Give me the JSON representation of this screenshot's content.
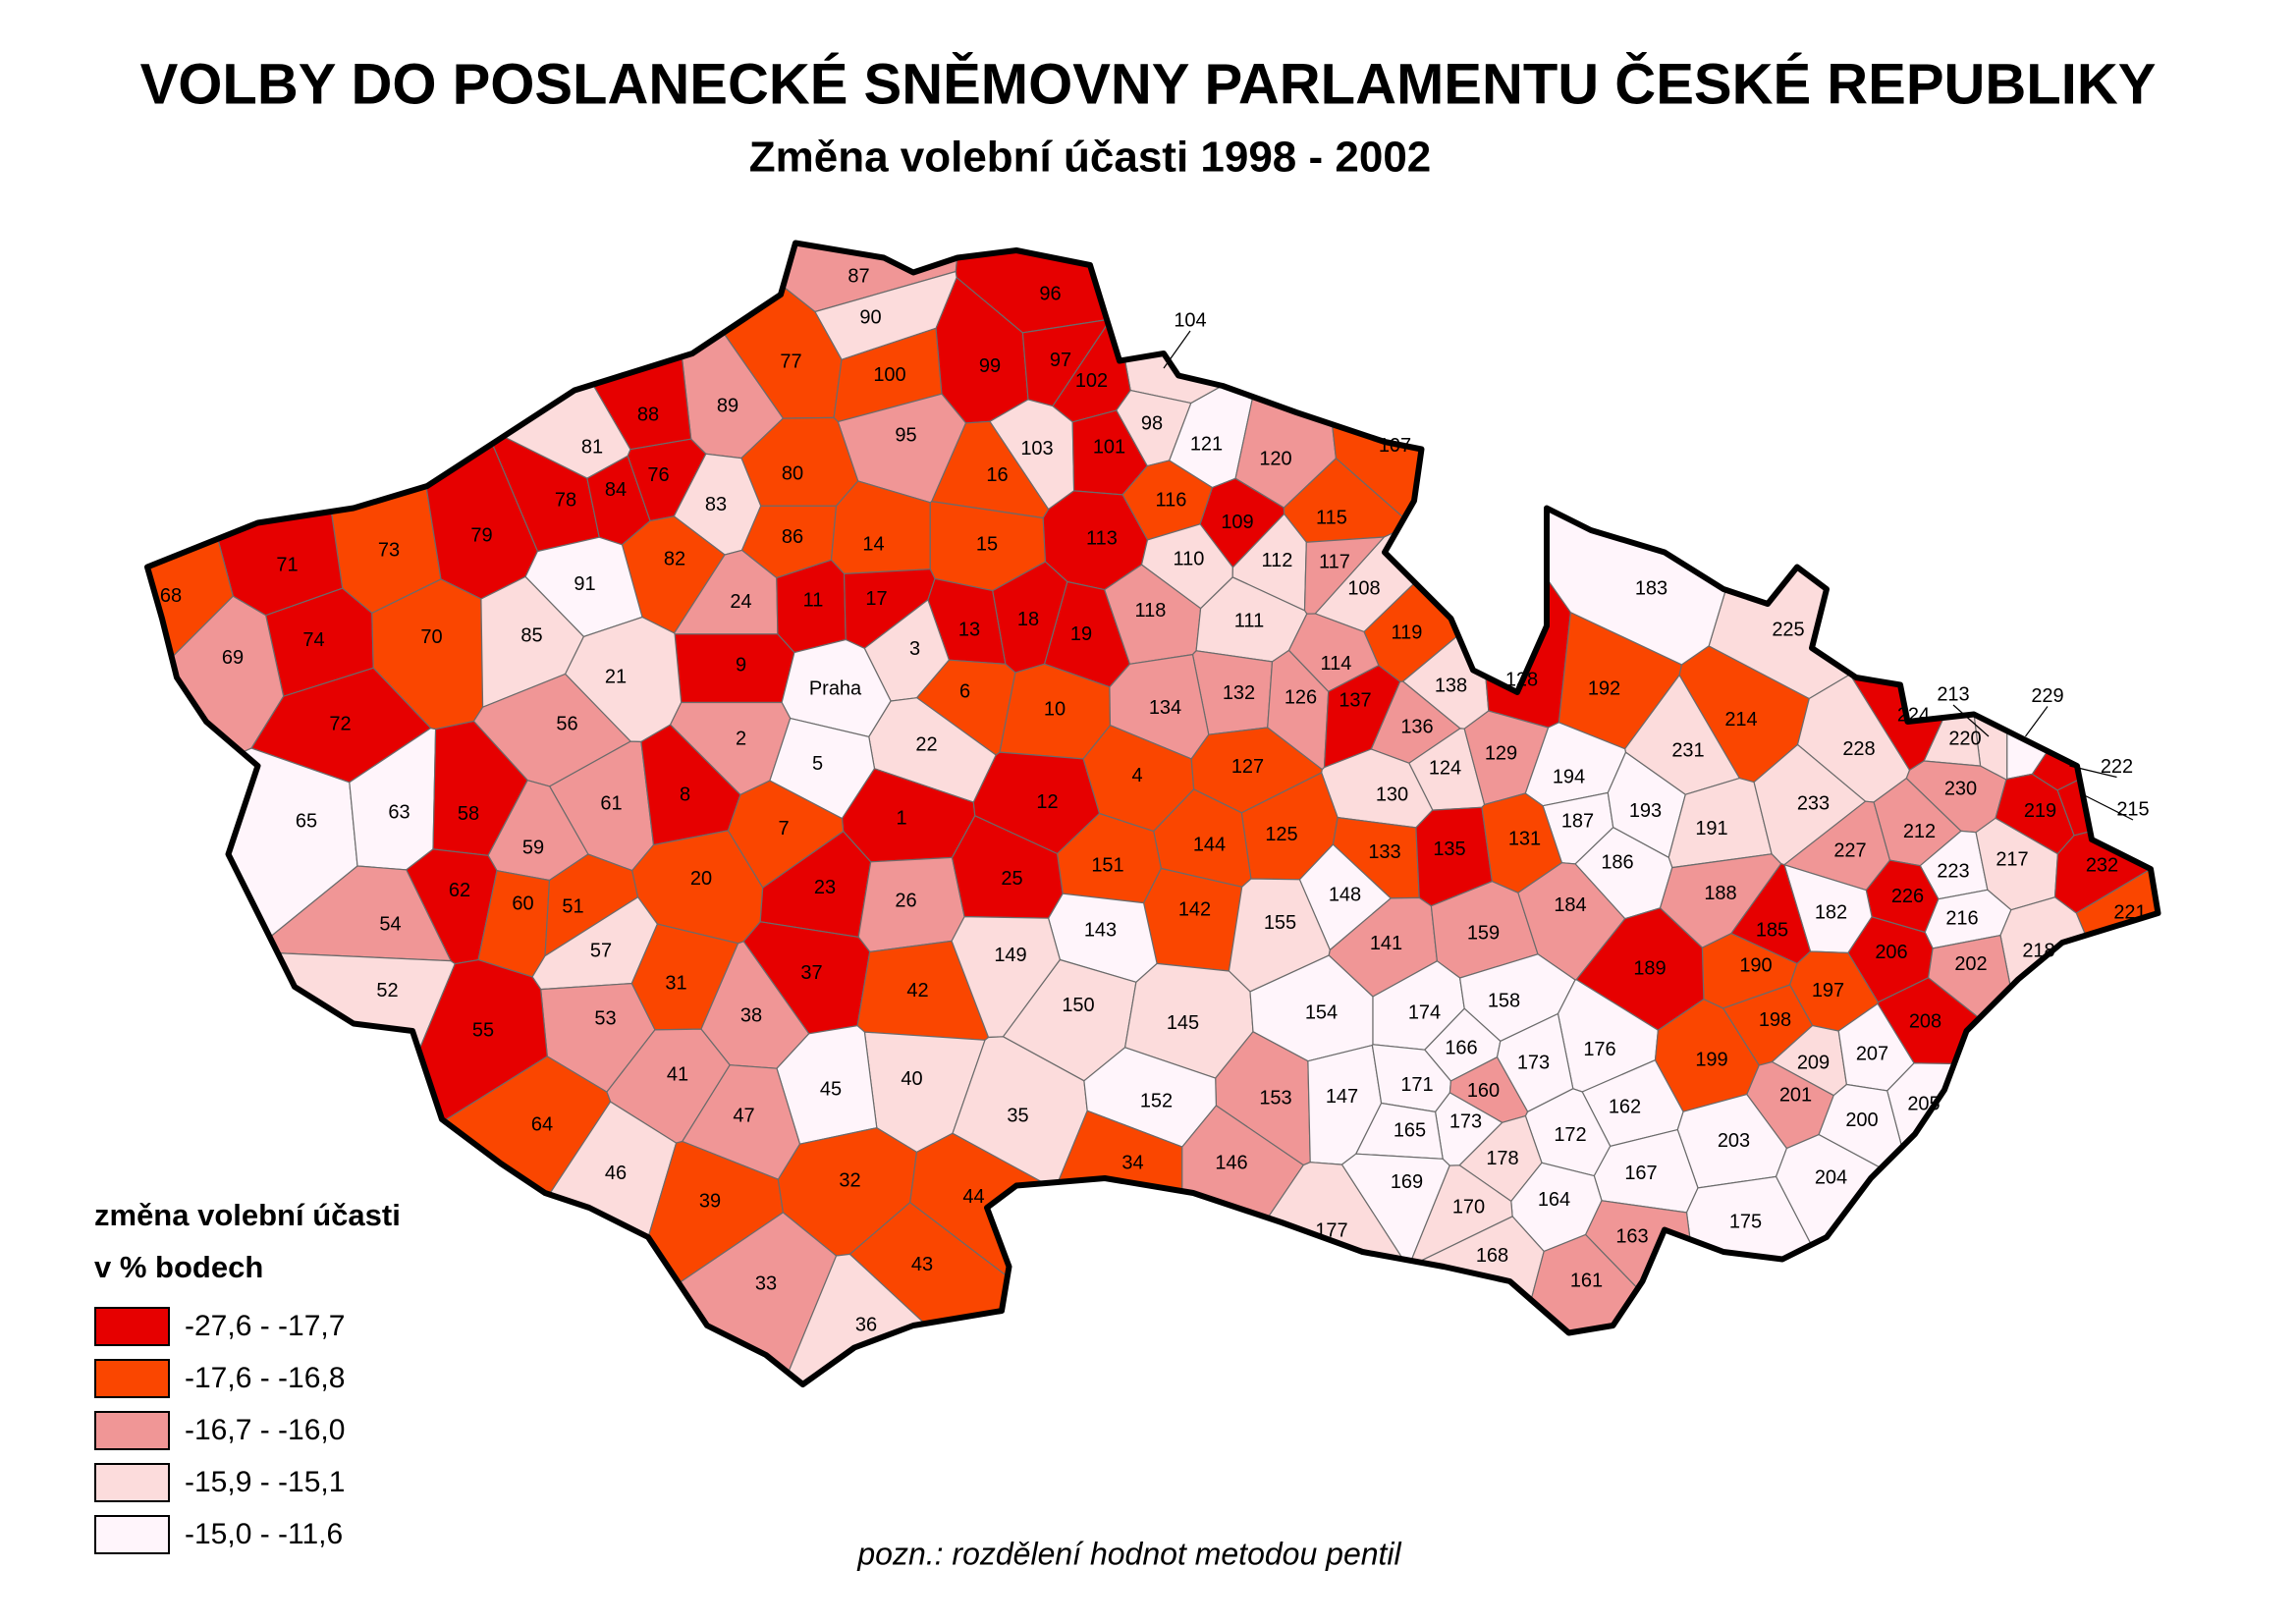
{
  "header": {
    "title": "VOLBY DO POSLANECKÉ SNĚMOVNY PARLAMENTU ČESKÉ REPUBLIKY",
    "subtitle": "Změna volební účasti 1998 - 2002"
  },
  "legend": {
    "title": [
      "změna volební účasti",
      "v % bodech"
    ],
    "items": [
      {
        "label": "-27,6 - -17,7",
        "color": "#e60000"
      },
      {
        "label": "-17,6 - -16,8",
        "color": "#fa4600"
      },
      {
        "label": "-16,7 - -16,0",
        "color": "#f09696"
      },
      {
        "label": "-15,9 - -15,1",
        "color": "#fcdcdc"
      },
      {
        "label": "-15,0 - -11,6",
        "color": "#fff5fb"
      }
    ]
  },
  "note": "pozn.: rozdělení hodnot metodou pentil",
  "districts": [
    {
      "label": "87",
      "class": 2
    },
    {
      "label": "90",
      "class": 3
    },
    {
      "label": "96",
      "class": 0
    },
    {
      "label": "104",
      "class": 3
    },
    {
      "label": "77",
      "class": 1
    },
    {
      "label": "100",
      "class": 1
    },
    {
      "label": "99",
      "class": 0
    },
    {
      "label": "97",
      "class": 0
    },
    {
      "label": "102",
      "class": 0
    },
    {
      "label": "98",
      "class": 3
    },
    {
      "label": "121",
      "class": 4
    },
    {
      "label": "89",
      "class": 2
    },
    {
      "label": "95",
      "class": 2
    },
    {
      "label": "103",
      "class": 3
    },
    {
      "label": "101",
      "class": 0
    },
    {
      "label": "120",
      "class": 2
    },
    {
      "label": "107",
      "class": 1
    },
    {
      "label": "81",
      "class": 3
    },
    {
      "label": "88",
      "class": 0
    },
    {
      "label": "76",
      "class": 0
    },
    {
      "label": "80",
      "class": 1
    },
    {
      "label": "16",
      "class": 1
    },
    {
      "label": "116",
      "class": 1
    },
    {
      "label": "109",
      "class": 0
    },
    {
      "label": "115",
      "class": 1
    },
    {
      "label": "78",
      "class": 0
    },
    {
      "label": "84",
      "class": 0
    },
    {
      "label": "83",
      "class": 3
    },
    {
      "label": "86",
      "class": 1
    },
    {
      "label": "14",
      "class": 1
    },
    {
      "label": "15",
      "class": 1
    },
    {
      "label": "113",
      "class": 0
    },
    {
      "label": "110",
      "class": 3
    },
    {
      "label": "112",
      "class": 3
    },
    {
      "label": "117",
      "class": 2
    },
    {
      "label": "73",
      "class": 1
    },
    {
      "label": "79",
      "class": 0
    },
    {
      "label": "82",
      "class": 1
    },
    {
      "label": "91",
      "class": 4
    },
    {
      "label": "108",
      "class": 3
    },
    {
      "label": "71",
      "class": 0
    },
    {
      "label": "68",
      "class": 1
    },
    {
      "label": "24",
      "class": 2
    },
    {
      "label": "11",
      "class": 0
    },
    {
      "label": "17",
      "class": 0
    },
    {
      "label": "13",
      "class": 0
    },
    {
      "label": "18",
      "class": 0
    },
    {
      "label": "19",
      "class": 0
    },
    {
      "label": "118",
      "class": 2
    },
    {
      "label": "111",
      "class": 3
    },
    {
      "label": "119",
      "class": 1
    },
    {
      "label": "74",
      "class": 0
    },
    {
      "label": "70",
      "class": 1
    },
    {
      "label": "69",
      "class": 2
    },
    {
      "label": "85",
      "class": 3
    },
    {
      "label": "3",
      "class": 3
    },
    {
      "label": "114",
      "class": 2
    },
    {
      "label": "9",
      "class": 0
    },
    {
      "label": "21",
      "class": 3
    },
    {
      "label": "Praha",
      "class": 4
    },
    {
      "label": "6",
      "class": 1
    },
    {
      "label": "10",
      "class": 1
    },
    {
      "label": "132",
      "class": 2
    },
    {
      "label": "126",
      "class": 2
    },
    {
      "label": "134",
      "class": 2
    },
    {
      "label": "138",
      "class": 3
    },
    {
      "label": "128",
      "class": 0
    },
    {
      "label": "192",
      "class": 1
    },
    {
      "label": "137",
      "class": 0
    },
    {
      "label": "136",
      "class": 2
    },
    {
      "label": "72",
      "class": 0
    },
    {
      "label": "56",
      "class": 2
    },
    {
      "label": "2",
      "class": 2
    },
    {
      "label": "22",
      "class": 3
    },
    {
      "label": "5",
      "class": 4
    },
    {
      "label": "4",
      "class": 1
    },
    {
      "label": "127",
      "class": 1
    },
    {
      "label": "124",
      "class": 3
    },
    {
      "label": "129",
      "class": 2
    },
    {
      "label": "214",
      "class": 1
    },
    {
      "label": "231",
      "class": 3
    },
    {
      "label": "225",
      "class": 3
    },
    {
      "label": "183",
      "class": 4
    },
    {
      "label": "224",
      "class": 0
    },
    {
      "label": "213",
      "class": 3
    },
    {
      "label": "229",
      "class": 4
    },
    {
      "label": "220",
      "class": 3
    },
    {
      "label": "228",
      "class": 3
    },
    {
      "label": "222",
      "class": 0
    },
    {
      "label": "215",
      "class": 0
    },
    {
      "label": "65",
      "class": 4
    },
    {
      "label": "63",
      "class": 4
    },
    {
      "label": "58",
      "class": 0
    },
    {
      "label": "61",
      "class": 2
    },
    {
      "label": "8",
      "class": 0
    },
    {
      "label": "1",
      "class": 0
    },
    {
      "label": "12",
      "class": 0
    },
    {
      "label": "130",
      "class": 3
    },
    {
      "label": "194",
      "class": 4
    },
    {
      "label": "187",
      "class": 4
    },
    {
      "label": "193",
      "class": 4
    },
    {
      "label": "191",
      "class": 3
    },
    {
      "label": "233",
      "class": 3
    },
    {
      "label": "230",
      "class": 2
    },
    {
      "label": "219",
      "class": 0
    },
    {
      "label": "59",
      "class": 2
    },
    {
      "label": "7",
      "class": 1
    },
    {
      "label": "125",
      "class": 1
    },
    {
      "label": "133",
      "class": 1
    },
    {
      "label": "135",
      "class": 0
    },
    {
      "label": "131",
      "class": 1
    },
    {
      "label": "144",
      "class": 1
    },
    {
      "label": "151",
      "class": 1
    },
    {
      "label": "186",
      "class": 4
    },
    {
      "label": "188",
      "class": 2
    },
    {
      "label": "227",
      "class": 2
    },
    {
      "label": "212",
      "class": 2
    },
    {
      "label": "223",
      "class": 4
    },
    {
      "label": "217",
      "class": 3
    },
    {
      "label": "232",
      "class": 0
    },
    {
      "label": "62",
      "class": 0
    },
    {
      "label": "60",
      "class": 1
    },
    {
      "label": "51",
      "class": 1
    },
    {
      "label": "20",
      "class": 1
    },
    {
      "label": "23",
      "class": 0
    },
    {
      "label": "26",
      "class": 2
    },
    {
      "label": "25",
      "class": 0
    },
    {
      "label": "142",
      "class": 1
    },
    {
      "label": "148",
      "class": 4
    },
    {
      "label": "54",
      "class": 2
    },
    {
      "label": "155",
      "class": 3
    },
    {
      "label": "141",
      "class": 2
    },
    {
      "label": "159",
      "class": 2
    },
    {
      "label": "184",
      "class": 2
    },
    {
      "label": "226",
      "class": 0
    },
    {
      "label": "182",
      "class": 4
    },
    {
      "label": "216",
      "class": 4
    },
    {
      "label": "221",
      "class": 1
    },
    {
      "label": "57",
      "class": 3
    },
    {
      "label": "143",
      "class": 4
    },
    {
      "label": "218",
      "class": 3
    },
    {
      "label": "206",
      "class": 0
    },
    {
      "label": "202",
      "class": 2
    },
    {
      "label": "185",
      "class": 0
    },
    {
      "label": "190",
      "class": 1
    },
    {
      "label": "189",
      "class": 0
    },
    {
      "label": "31",
      "class": 1
    },
    {
      "label": "37",
      "class": 0
    },
    {
      "label": "42",
      "class": 1
    },
    {
      "label": "149",
      "class": 3
    },
    {
      "label": "52",
      "class": 3
    },
    {
      "label": "53",
      "class": 2
    },
    {
      "label": "38",
      "class": 2
    },
    {
      "label": "150",
      "class": 3
    },
    {
      "label": "145",
      "class": 3
    },
    {
      "label": "154",
      "class": 4
    },
    {
      "label": "174",
      "class": 4
    },
    {
      "label": "158",
      "class": 4
    },
    {
      "label": "176",
      "class": 4
    },
    {
      "label": "197",
      "class": 1
    },
    {
      "label": "198",
      "class": 1
    },
    {
      "label": "208",
      "class": 0
    },
    {
      "label": "55",
      "class": 0
    },
    {
      "label": "41",
      "class": 2
    },
    {
      "label": "40",
      "class": 3
    },
    {
      "label": "45",
      "class": 4
    },
    {
      "label": "35",
      "class": 3
    },
    {
      "label": "153",
      "class": 2
    },
    {
      "label": "147",
      "class": 4
    },
    {
      "label": "166",
      "class": 4
    },
    {
      "label": "173",
      "class": 4
    },
    {
      "label": "171",
      "class": 4
    },
    {
      "label": "160",
      "class": 2
    },
    {
      "label": "162",
      "class": 4
    },
    {
      "label": "199",
      "class": 1
    },
    {
      "label": "209",
      "class": 3
    },
    {
      "label": "207",
      "class": 4
    },
    {
      "label": "201",
      "class": 2
    },
    {
      "label": "205",
      "class": 4
    },
    {
      "label": "64",
      "class": 1
    },
    {
      "label": "47",
      "class": 2
    },
    {
      "label": "152",
      "class": 4
    },
    {
      "label": "173",
      "class": 4
    },
    {
      "label": "165",
      "class": 4
    },
    {
      "label": "172",
      "class": 4
    },
    {
      "label": "200",
      "class": 4
    },
    {
      "label": "203",
      "class": 4
    },
    {
      "label": "178",
      "class": 3
    },
    {
      "label": "34",
      "class": 1
    },
    {
      "label": "146",
      "class": 2
    },
    {
      "label": "167",
      "class": 4
    },
    {
      "label": "46",
      "class": 3
    },
    {
      "label": "39",
      "class": 1
    },
    {
      "label": "32",
      "class": 1
    },
    {
      "label": "44",
      "class": 1
    },
    {
      "label": "169",
      "class": 4
    },
    {
      "label": "204",
      "class": 4
    },
    {
      "label": "164",
      "class": 4
    },
    {
      "label": "170",
      "class": 3
    },
    {
      "label": "175",
      "class": 4
    },
    {
      "label": "177",
      "class": 3
    },
    {
      "label": "163",
      "class": 2
    },
    {
      "label": "168",
      "class": 3
    },
    {
      "label": "43",
      "class": 1
    },
    {
      "label": "161",
      "class": 2
    },
    {
      "label": "33",
      "class": 2
    },
    {
      "label": "36",
      "class": 3
    }
  ]
}
